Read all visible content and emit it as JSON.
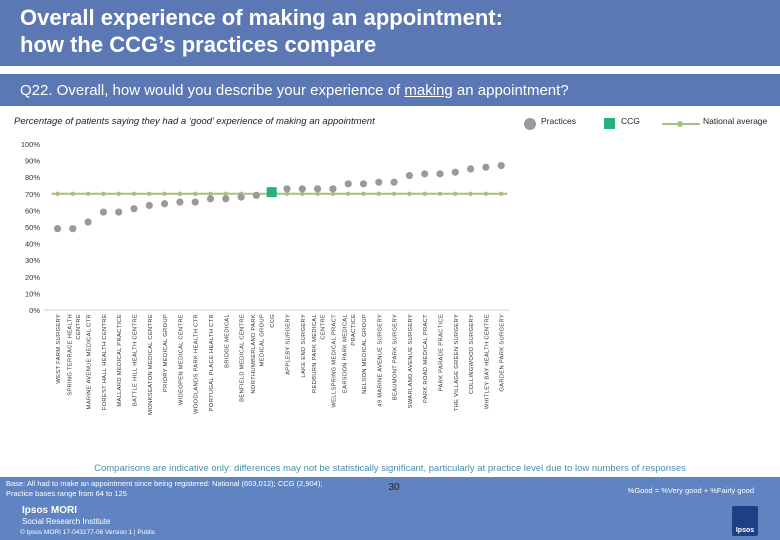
{
  "header": {
    "title": "Overall experience of making an appointment:\nhow the CCG’s practices compare"
  },
  "question": {
    "prefix": "Q22. Overall, how would you describe your experience of ",
    "underlined": "making",
    "suffix": " an appointment?"
  },
  "subtitle": "Percentage of patients saying they had a ‘good’ experience of making an appointment",
  "legend": {
    "practices": "Practices",
    "ccg": "CCG",
    "national": "National average"
  },
  "colors": {
    "header": "#5b78b5",
    "practice_marker": "#9a9a9a",
    "ccg_marker": "#22b27a",
    "national_line": "#a7c07f"
  },
  "chart_data": {
    "type": "scatter",
    "ylim": [
      0,
      100
    ],
    "yticks": [
      "0%",
      "10%",
      "20%",
      "30%",
      "40%",
      "50%",
      "60%",
      "70%",
      "80%",
      "90%",
      "100%"
    ],
    "national_average": 70,
    "categories": [
      "WEST FARM SURGERY",
      "SPRING TERRACE HEALTH CENTRE",
      "MARINE AVENUE MEDICAL CTR",
      "FOREST HALL HEALTH CENTRE",
      "MALLARD MEDICAL PRACTICE",
      "BATTLE HILL HEALTH CENTRE",
      "MONKSEATON MEDICAL CENTRE",
      "PRIORY MEDICAL GROUP",
      "WIDEOPEN MEDICAL CENTRE",
      "WOODLANDS PARK HEALTH CTR",
      "PORTUGAL PLACE HEALTH CTR",
      "BRIDGE MEDICAL",
      "BENFIELD MEDICAL CENTRE",
      "NORTHUMBERLAND PARK MEDICAL GROUP",
      "CCG",
      "APPLEBY SURGERY",
      "LAKE END SURGERY",
      "REDBURN PARK MEDICAL CENTRE",
      "WELLSPRING MEDICAL PRACT",
      "EARSDON PARK MEDICAL PRACTICE",
      "NELSON MEDICAL GROUP",
      "49 MARINE AVENUE SURGERY",
      "BEAUMONT PARK SURGERY",
      "SWARLAND AVENUE SURGERY",
      "PARK ROAD MEDICAL PRACT",
      "PARK PARADE PRACTICE",
      "THE VILLAGE GREEN SURGERY",
      "COLLINGWOOD SURGERY",
      "WHITLEY BAY HEALTH CENTRE",
      "GARDEN PARK SURGERY"
    ],
    "values": [
      49,
      49,
      53,
      59,
      59,
      61,
      63,
      64,
      65,
      65,
      67,
      67,
      68,
      69,
      71,
      73,
      73,
      73,
      73,
      76,
      76,
      77,
      77,
      81,
      82,
      82,
      83,
      85,
      86,
      87
    ]
  },
  "note": "Comparisons are indicative only: differences may not be statistically significant, particularly at practice level due to low numbers of responses",
  "footer": {
    "base": "Base: All had to make an appointment since being registered: National (603,012); CCG (2,904);\nPractice bases range from 64 to 125",
    "formula": "%Good = %Very good + %Fairly good",
    "page_number": "30",
    "brand_line1": "Ipsos MORI",
    "brand_line2": "Social Research Institute",
    "copyright": "© Ipsos MORI    17-043177-06 Version 1 | Public",
    "logo_text": "Ipsos"
  }
}
